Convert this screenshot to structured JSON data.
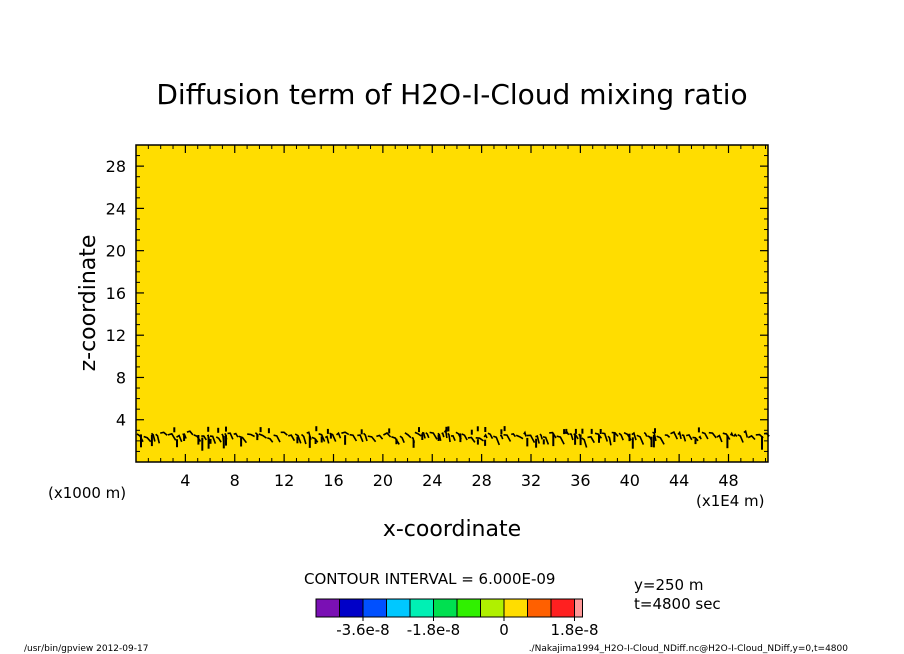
{
  "chart_data": {
    "type": "heatmap",
    "title": "Diffusion term of H2O-I-Cloud mixing ratio",
    "xlabel": "x-coordinate",
    "ylabel": "z-coordinate",
    "x_unit_label": "(x1E4 m)",
    "y_unit_label": "(x1000 m)",
    "xlim": [
      0,
      51.2
    ],
    "ylim": [
      0,
      30
    ],
    "x_ticks": [
      4,
      8,
      12,
      16,
      20,
      24,
      28,
      32,
      36,
      40,
      44,
      48
    ],
    "y_ticks": [
      4,
      8,
      12,
      16,
      20,
      24,
      28
    ],
    "x_tick_labels": [
      "4",
      "8",
      "12",
      "16",
      "20",
      "24",
      "28",
      "32",
      "36",
      "40",
      "44",
      "48"
    ],
    "y_tick_labels": [
      "4",
      "8",
      "12",
      "16",
      "20",
      "24",
      "28"
    ],
    "field_fill_color": "#ffdd00",
    "contour_band_z": [
      0.5,
      3.4
    ],
    "contour_interval_text": "CONTOUR INTERVAL = 6.000E-09",
    "colorbar": {
      "colors": [
        "#7a10b4",
        "#0000c8",
        "#0050ff",
        "#00c8ff",
        "#00f0b4",
        "#00e050",
        "#30f000",
        "#b0f000",
        "#ffdd00",
        "#ff6000",
        "#ff2020",
        "#ff9898"
      ],
      "labels": [
        "-3.6e-8",
        "-1.8e-8",
        "0",
        "1.8e-8"
      ],
      "label_values": [
        -3.6e-08,
        -1.8e-08,
        0,
        1.8e-08
      ],
      "interval": 6e-09
    },
    "annotations": {
      "y_position": "y=250 m",
      "time": "t=4800 sec",
      "footer_left": "/usr/bin/gpview  2012-09-17",
      "footer_right": "./Nakajima1994_H2O-I-Cloud_NDiff.nc@H2O-I-Cloud_NDiff,y=0,t=4800"
    }
  }
}
